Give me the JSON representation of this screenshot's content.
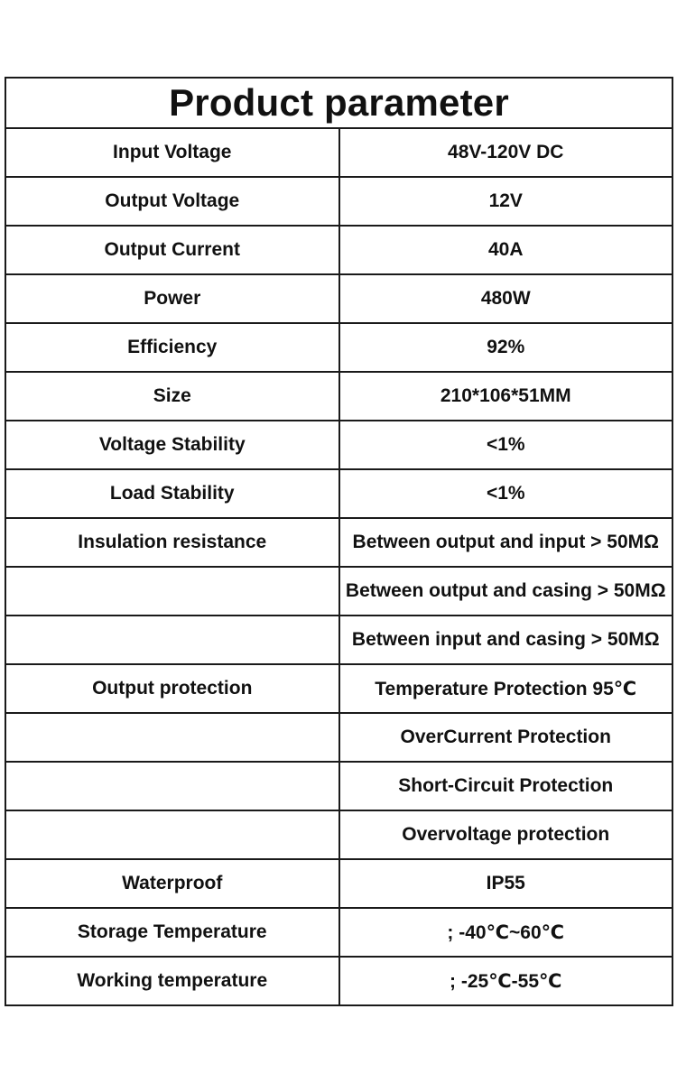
{
  "title": "Product parameter",
  "rows": [
    {
      "label": "Input Voltage",
      "value": "48V-120V DC"
    },
    {
      "label": "Output Voltage",
      "value": "12V"
    },
    {
      "label": "Output Current",
      "value": "40A"
    },
    {
      "label": "Power",
      "value": "480W"
    },
    {
      "label": "Efficiency",
      "value": "92%"
    },
    {
      "label": "Size",
      "value": "210*106*51MM"
    },
    {
      "label": "Voltage Stability",
      "value": "<1%"
    },
    {
      "label": "Load Stability",
      "value": "<1%"
    },
    {
      "label": "Insulation resistance",
      "value": "Between output and input > 50MΩ"
    },
    {
      "label": "",
      "value": "Between output and casing > 50MΩ"
    },
    {
      "label": "",
      "value": "Between input and casing > 50MΩ"
    },
    {
      "label": "Output protection",
      "value": "Temperature Protection 95℃"
    },
    {
      "label": "",
      "value": "OverCurrent Protection"
    },
    {
      "label": "",
      "value": "Short-Circuit Protection"
    },
    {
      "label": "",
      "value": "Overvoltage protection"
    },
    {
      "label": "Waterproof",
      "value": "IP55"
    },
    {
      "label": "Storage Temperature",
      "value": "; -40℃~60℃"
    },
    {
      "label": "Working temperature",
      "value": "; -25℃-55℃"
    }
  ]
}
